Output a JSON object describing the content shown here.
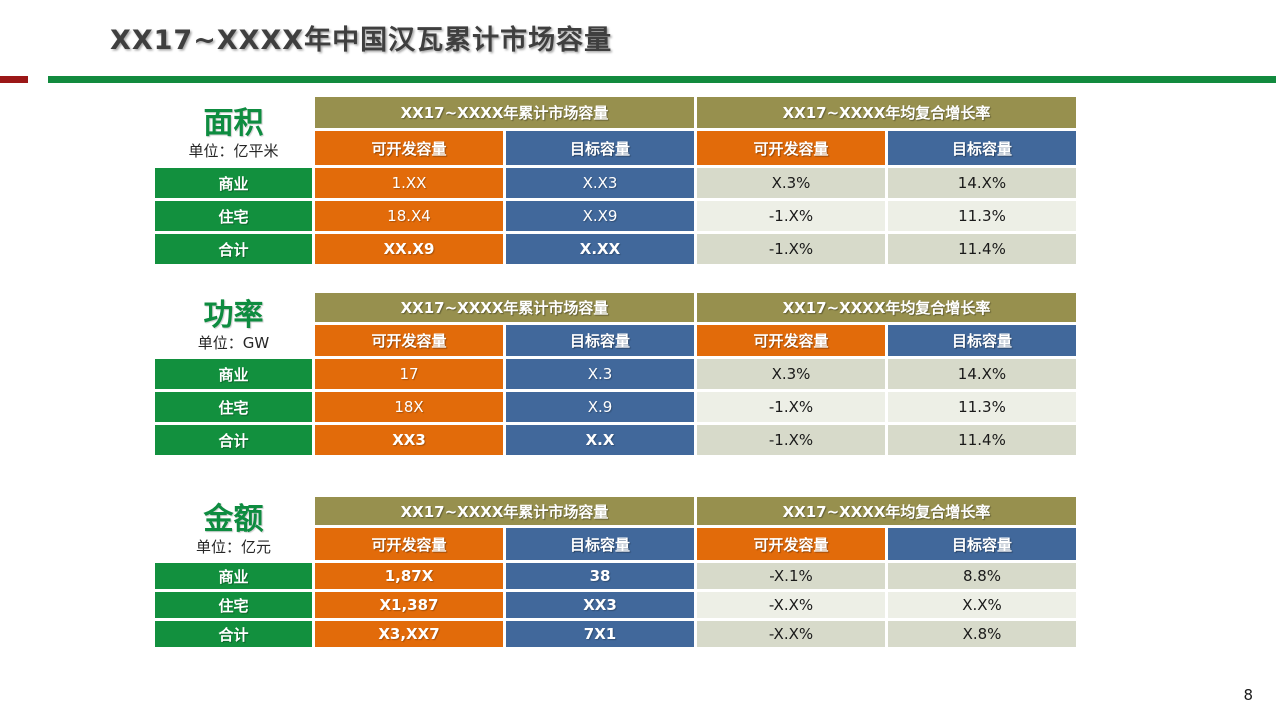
{
  "page": {
    "title": "XX17~XXXX年中国汉瓦累计市场容量",
    "page_number": "8"
  },
  "table_headers": {
    "cumulative": "XX17~XXXX年累计市场容量",
    "cagr": "XX17~XXXX年均复合增长率",
    "developable": "可开发容量",
    "target": "目标容量"
  },
  "sections": [
    {
      "title": "面积",
      "unit": "单位：亿平米",
      "rows": [
        {
          "label": "商业",
          "developable": "1.XX",
          "target": "X.X3",
          "cagr_developable": "X.3%",
          "cagr_target": "14.X%"
        },
        {
          "label": "住宅",
          "developable": "18.X4",
          "target": "X.X9",
          "cagr_developable": "-1.X%",
          "cagr_target": "11.3%"
        },
        {
          "label": "合计",
          "developable": "XX.X9",
          "target": "X.XX",
          "cagr_developable": "-1.X%",
          "cagr_target": "11.4%"
        }
      ]
    },
    {
      "title": "功率",
      "unit": "单位：GW",
      "rows": [
        {
          "label": "商业",
          "developable": "17",
          "target": "X.3",
          "cagr_developable": "X.3%",
          "cagr_target": "14.X%"
        },
        {
          "label": "住宅",
          "developable": "18X",
          "target": "X.9",
          "cagr_developable": "-1.X%",
          "cagr_target": "11.3%"
        },
        {
          "label": "合计",
          "developable": "XX3",
          "target": "X.X",
          "cagr_developable": "-1.X%",
          "cagr_target": "11.4%"
        }
      ]
    },
    {
      "title": "金额",
      "unit": "单位：亿元",
      "rows": [
        {
          "label": "商业",
          "developable": "1,87X",
          "target": "38",
          "cagr_developable": "-X.1%",
          "cagr_target": "8.8%"
        },
        {
          "label": "住宅",
          "developable": "X1,387",
          "target": "XX3",
          "cagr_developable": "-X.X%",
          "cagr_target": "X.X%"
        },
        {
          "label": "合计",
          "developable": "X3,XX7",
          "target": "7X1",
          "cagr_developable": "-X.X%",
          "cagr_target": "X.8%"
        }
      ]
    }
  ],
  "colors": {
    "olive_header": "#97904e",
    "orange_column": "#e26b0a",
    "blue_column": "#41689b",
    "green_label": "#12903e",
    "light_row_dark": "#d7daca",
    "light_row_light": "#edefe6",
    "title_text": "#3f3f3f",
    "section_title_green": "#0e8c40",
    "red_accent": "#9b1717",
    "green_rule": "#128a3e"
  }
}
